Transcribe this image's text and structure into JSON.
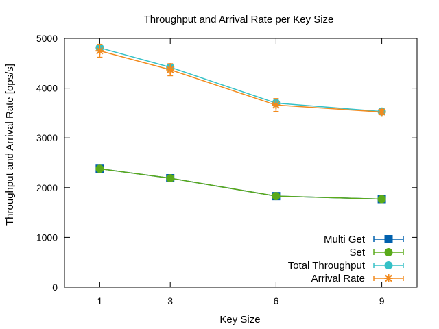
{
  "chart_data": {
    "type": "line",
    "title": "Throughput and Arrival Rate per Key Size",
    "xlabel": "Key Size",
    "ylabel": "Throughput and Arrival Rate [ops/s]",
    "x": [
      1,
      3,
      6,
      9
    ],
    "x_ticks": [
      "1",
      "3",
      "6",
      "9"
    ],
    "xlim": [
      0,
      10
    ],
    "ylim": [
      0,
      5000
    ],
    "y_ticks": [
      "0",
      "1000",
      "2000",
      "3000",
      "4000",
      "5000"
    ],
    "grid": false,
    "legend_position": "bottom-right",
    "series": [
      {
        "name": "Multi Get",
        "values": [
          2380,
          2190,
          1830,
          1770
        ],
        "errors": [
          30,
          30,
          30,
          30
        ],
        "color": "#0060ad",
        "marker": "square"
      },
      {
        "name": "Set",
        "values": [
          2380,
          2190,
          1830,
          1770
        ],
        "errors": [
          30,
          30,
          30,
          30
        ],
        "color": "#5aaa1a",
        "marker": "circle"
      },
      {
        "name": "Total Throughput",
        "values": [
          4810,
          4420,
          3700,
          3530
        ],
        "errors": [
          50,
          50,
          60,
          40
        ],
        "color": "#35c1c7",
        "marker": "circle"
      },
      {
        "name": "Arrival Rate",
        "values": [
          4750,
          4370,
          3660,
          3520
        ],
        "errors": [
          130,
          120,
          130,
          50
        ],
        "color": "#f28a1e",
        "marker": "star"
      }
    ]
  }
}
